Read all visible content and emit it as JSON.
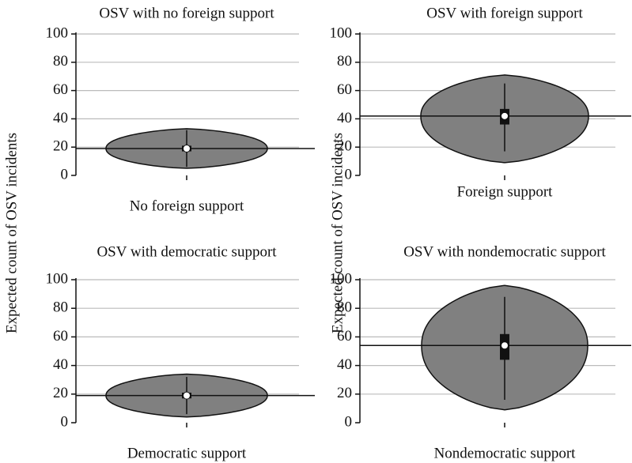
{
  "chart_data": [
    {
      "type": "violin",
      "title": "OSV with no foreign support",
      "category": "No foreign support",
      "ylabel": "Expected count of OSV incidents",
      "ylim": [
        0,
        100
      ],
      "yticks": [
        0,
        20,
        40,
        60,
        80,
        100
      ],
      "grid": true,
      "color": "#808080",
      "min": 5,
      "max": 33,
      "mode": 19,
      "q1": 17,
      "q3": 21,
      "whisker_low": 6,
      "whisker_high": 32,
      "median": 19,
      "reference": 19
    },
    {
      "type": "violin",
      "title": "OSV with foreign support",
      "category": "Foreign support",
      "ylabel": "Expected count of OSV incidents",
      "ylim": [
        0,
        100
      ],
      "yticks": [
        0,
        20,
        40,
        60,
        80,
        100
      ],
      "grid": true,
      "color": "#808080",
      "min": 9,
      "max": 71,
      "mode": 42,
      "q1": 36,
      "q3": 47,
      "whisker_low": 17,
      "whisker_high": 65,
      "median": 42,
      "reference": 42
    },
    {
      "type": "violin",
      "title": "OSV with democratic support",
      "category": "Democratic support",
      "ylim": [
        0,
        100
      ],
      "yticks": [
        0,
        20,
        40,
        60,
        80,
        100
      ],
      "grid": true,
      "color": "#808080",
      "min": 4,
      "max": 34,
      "mode": 19,
      "q1": 17,
      "q3": 21,
      "whisker_low": 6,
      "whisker_high": 32,
      "median": 19,
      "reference": 19
    },
    {
      "type": "violin",
      "title": "OSV with nondemocratic support",
      "category": "Nondemocratic support",
      "ylim": [
        0,
        100
      ],
      "yticks": [
        0,
        20,
        40,
        60,
        80,
        100
      ],
      "grid": true,
      "color": "#808080",
      "min": 9,
      "max": 96,
      "mode": 54,
      "q1": 44,
      "q3": 62,
      "whisker_low": 16,
      "whisker_high": 88,
      "median": 54,
      "reference": 54
    }
  ]
}
